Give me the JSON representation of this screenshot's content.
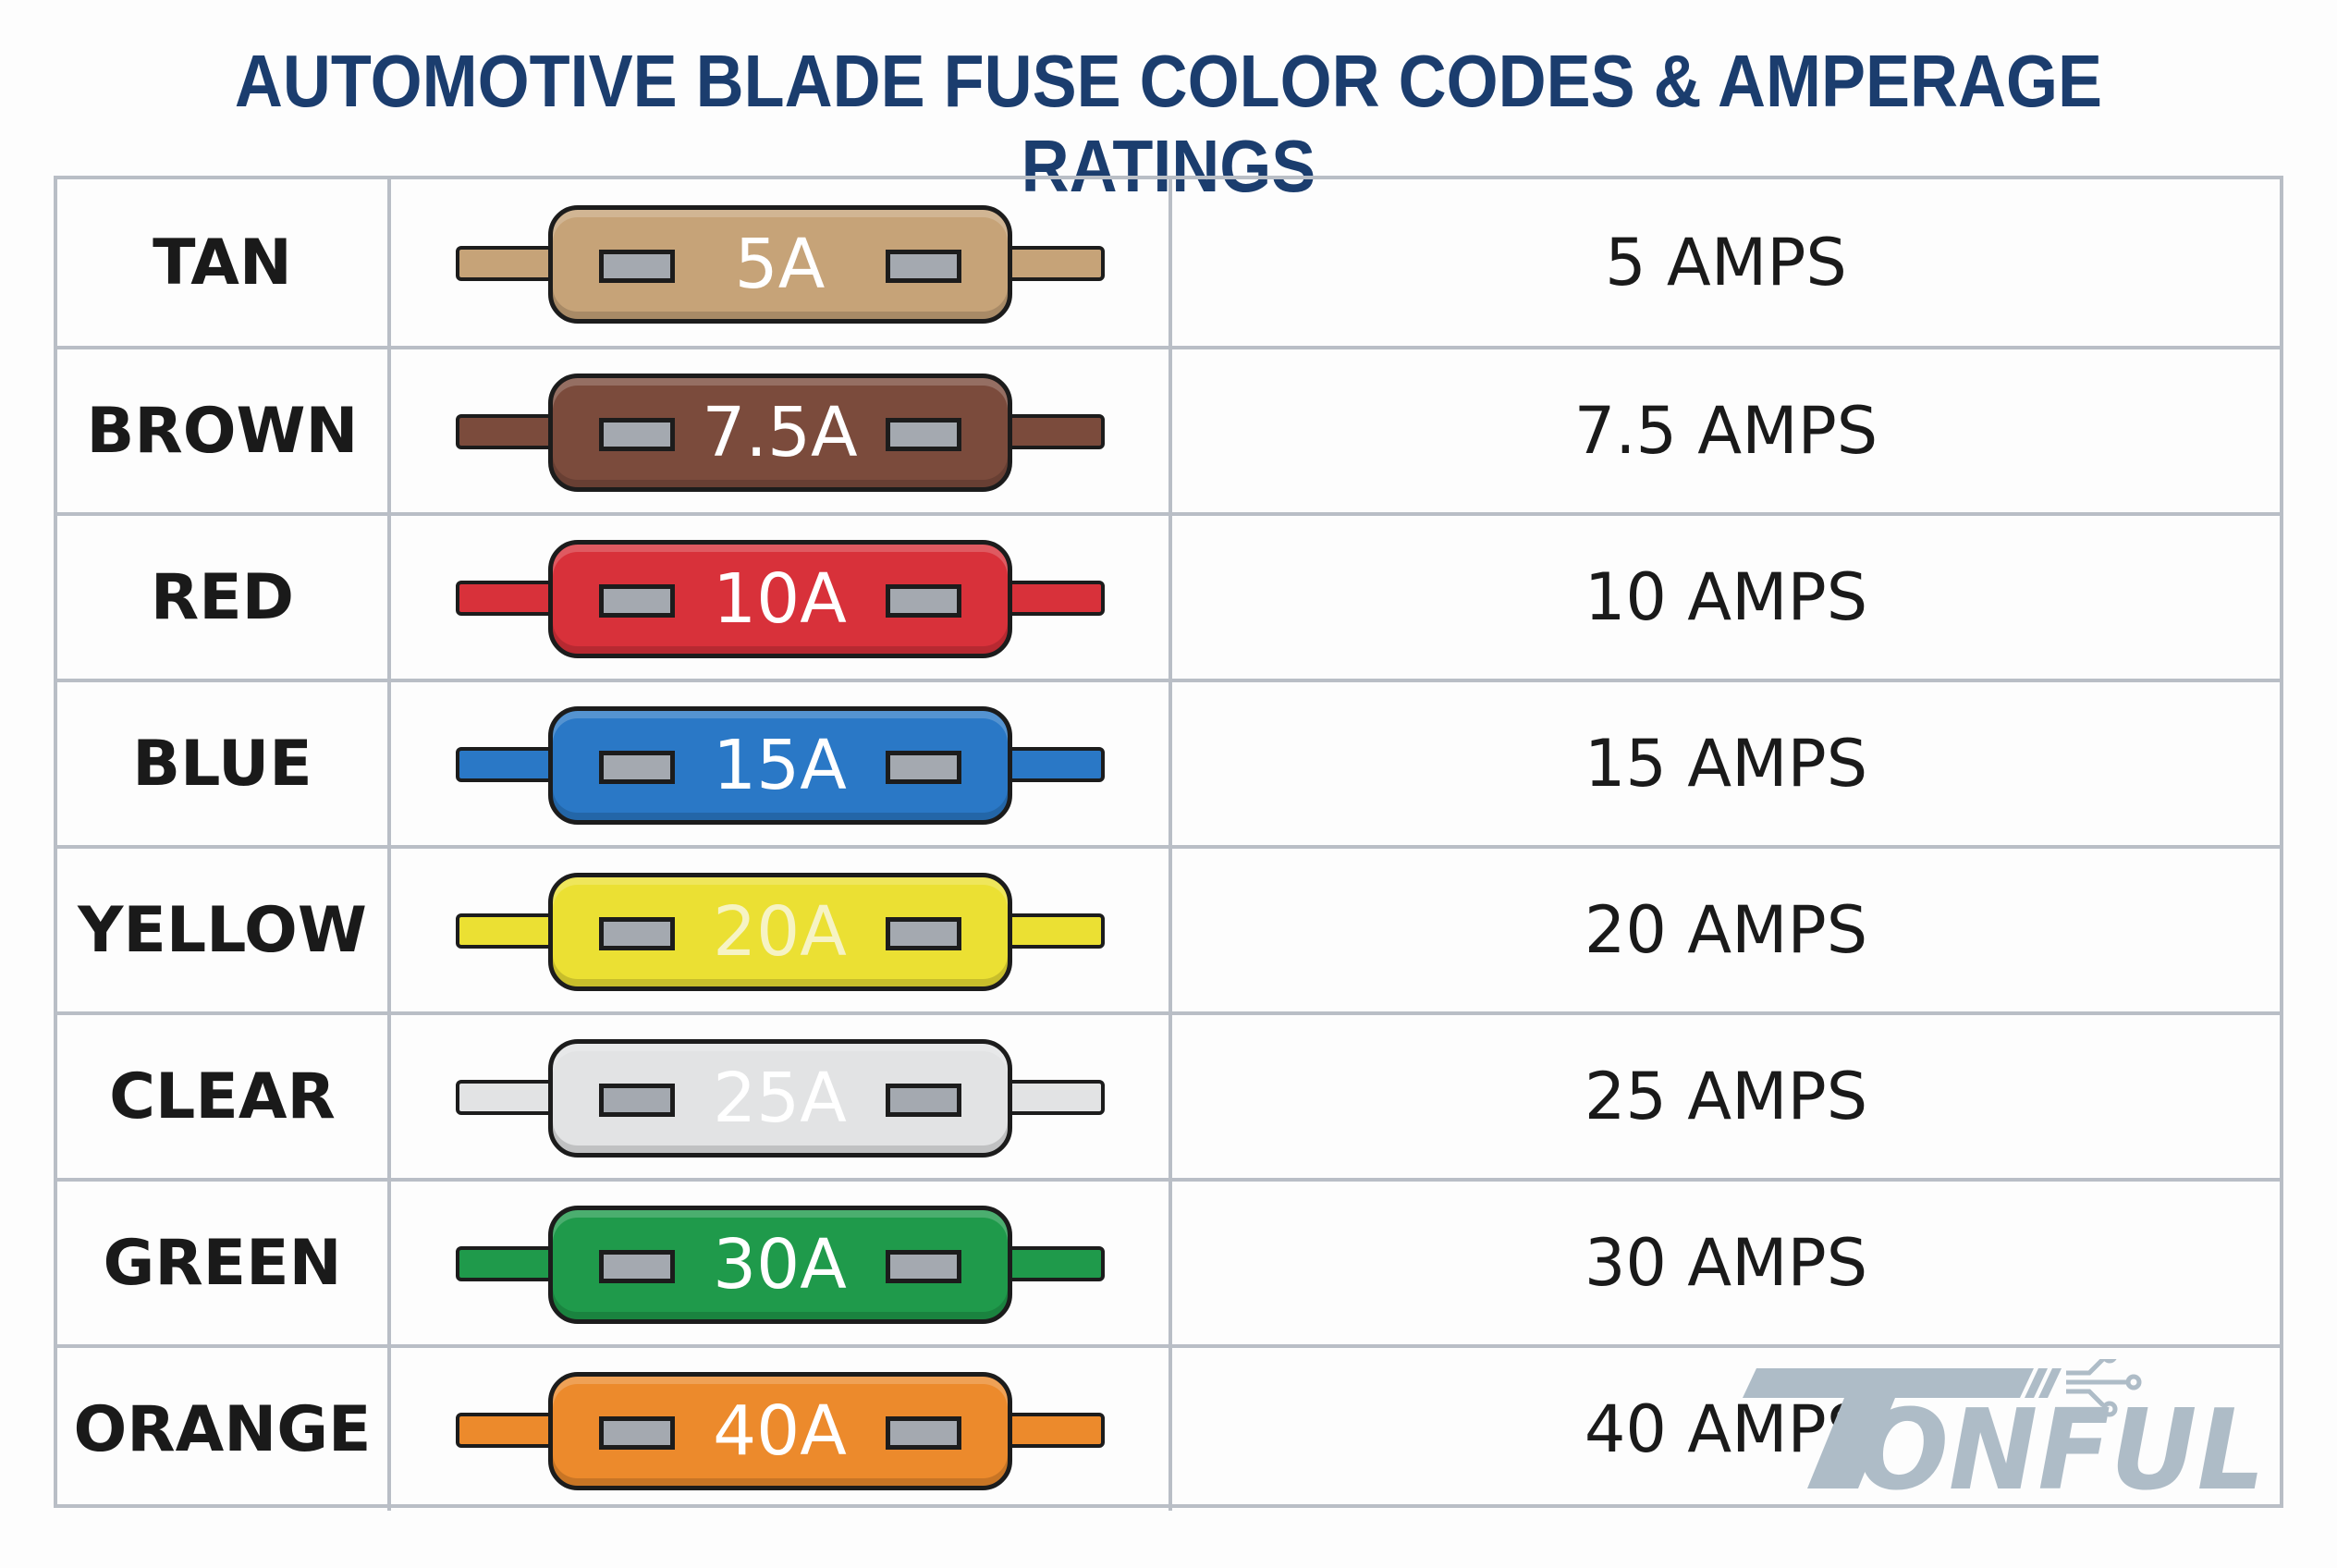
{
  "title": "AUTOMOTIVE BLADE FUSE COLOR CODES & AMPERAGE RATINGS",
  "fuses": [
    {
      "color_name": "TAN",
      "fuse_label": "5A",
      "rating": "5 AMPS",
      "color": "#c6a378",
      "text_color": "#ffffff"
    },
    {
      "color_name": "BROWN",
      "fuse_label": "7.5A",
      "rating": "7.5 AMPS",
      "color": "#7b4b3c",
      "text_color": "#ffffff"
    },
    {
      "color_name": "RED",
      "fuse_label": "10A",
      "rating": "10 AMPS",
      "color": "#d8313a",
      "text_color": "#ffffff"
    },
    {
      "color_name": "BLUE",
      "fuse_label": "15A",
      "rating": "15 AMPS",
      "color": "#2a78c6",
      "text_color": "#ffffff"
    },
    {
      "color_name": "YELLOW",
      "fuse_label": "20A",
      "rating": "20 AMPS",
      "color": "#ebe033",
      "text_color": "#f6f3c4"
    },
    {
      "color_name": "CLEAR",
      "fuse_label": "25A",
      "rating": "25 AMPS",
      "color": "#e2e3e4",
      "text_color": "#ffffff"
    },
    {
      "color_name": "GREEN",
      "fuse_label": "30A",
      "rating": "30 AMPS",
      "color": "#1f9a4b",
      "text_color": "#ffffff"
    },
    {
      "color_name": "ORANGE",
      "fuse_label": "40A",
      "rating": "40 AMPS",
      "color": "#ec8a2c",
      "text_color": "#ffffff"
    }
  ],
  "logo": {
    "text": "TONFUL",
    "color": "#aebcc7"
  }
}
